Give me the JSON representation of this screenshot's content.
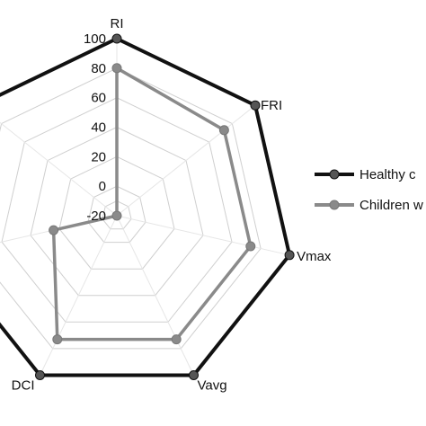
{
  "chart_data": {
    "type": "radar",
    "axes": [
      "RI",
      "FRI",
      "Vmax",
      "Vavg",
      "DCI",
      "",
      ""
    ],
    "range": [
      -20,
      100
    ],
    "ticks": [
      100,
      80,
      60,
      40,
      20,
      0,
      -20
    ],
    "series": [
      {
        "name": "Healthy c",
        "values": [
          100,
          100,
          100,
          100,
          100,
          100,
          100
        ],
        "color": "#111111",
        "marker_color": "#555555"
      },
      {
        "name": "Children w",
        "values": [
          80,
          73,
          73,
          73,
          73,
          24,
          -20
        ],
        "color": "#8a8a8a",
        "marker_color": "#8a8a8a"
      }
    ],
    "grid": true,
    "legend": "right"
  }
}
